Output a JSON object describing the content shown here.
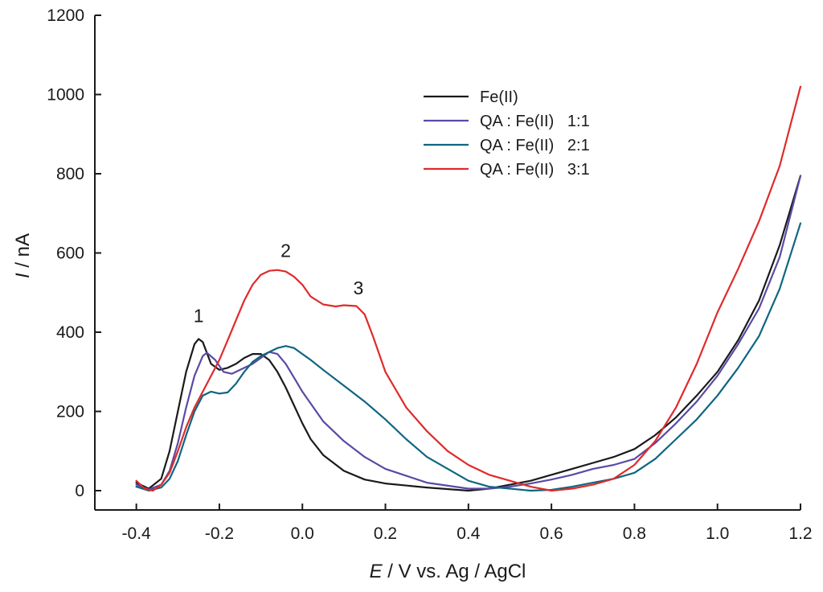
{
  "chart_data": {
    "type": "line",
    "title": "",
    "xlabel_var": "E",
    "xlabel_rest": " / V vs. Ag / AgCl",
    "ylabel_var": "I",
    "ylabel_rest": " / nA",
    "xlim": [
      -0.5,
      1.2
    ],
    "ylim": [
      -50,
      1200
    ],
    "xticks": [
      -0.4,
      -0.2,
      0.0,
      0.2,
      0.4,
      0.6,
      0.8,
      1.0,
      1.2
    ],
    "xtick_labels": [
      "-0.4",
      "-0.2",
      "0.0",
      "0.2",
      "0.4",
      "0.6",
      "0.8",
      "1.0",
      "1.2"
    ],
    "yticks": [
      0,
      200,
      400,
      600,
      800,
      1000,
      1200
    ],
    "ytick_labels": [
      "0",
      "200",
      "400",
      "600",
      "800",
      "1000",
      "1200"
    ],
    "grid": false,
    "legend_position": "top-right",
    "series": [
      {
        "name": "Fe(II)",
        "color": "#1a1a1a",
        "x": [
          -0.4,
          -0.37,
          -0.34,
          -0.32,
          -0.3,
          -0.28,
          -0.26,
          -0.25,
          -0.24,
          -0.22,
          -0.2,
          -0.18,
          -0.16,
          -0.14,
          -0.12,
          -0.1,
          -0.08,
          -0.06,
          -0.04,
          -0.02,
          0.0,
          0.02,
          0.05,
          0.1,
          0.15,
          0.2,
          0.3,
          0.4,
          0.45,
          0.5,
          0.55,
          0.6,
          0.65,
          0.7,
          0.75,
          0.8,
          0.85,
          0.9,
          0.95,
          1.0,
          1.05,
          1.1,
          1.15,
          1.2
        ],
        "y": [
          20,
          5,
          30,
          100,
          200,
          300,
          370,
          383,
          375,
          320,
          305,
          310,
          320,
          335,
          345,
          345,
          330,
          300,
          260,
          215,
          170,
          130,
          90,
          50,
          28,
          18,
          8,
          0,
          5,
          15,
          25,
          40,
          55,
          70,
          85,
          105,
          140,
          185,
          240,
          300,
          380,
          480,
          620,
          795
        ]
      },
      {
        "name": "QA : Fe(II)   1:1",
        "color": "#5a4aa5",
        "x": [
          -0.4,
          -0.37,
          -0.34,
          -0.32,
          -0.3,
          -0.28,
          -0.26,
          -0.24,
          -0.23,
          -0.21,
          -0.19,
          -0.17,
          -0.15,
          -0.12,
          -0.1,
          -0.08,
          -0.06,
          -0.04,
          -0.02,
          0.0,
          0.05,
          0.1,
          0.15,
          0.2,
          0.3,
          0.4,
          0.45,
          0.5,
          0.55,
          0.6,
          0.65,
          0.7,
          0.75,
          0.8,
          0.85,
          0.9,
          0.95,
          1.0,
          1.05,
          1.1,
          1.15,
          1.2
        ],
        "y": [
          15,
          3,
          15,
          50,
          120,
          210,
          290,
          340,
          348,
          330,
          300,
          295,
          305,
          320,
          335,
          350,
          345,
          320,
          285,
          250,
          175,
          125,
          85,
          55,
          20,
          5,
          5,
          10,
          18,
          28,
          40,
          55,
          65,
          80,
          120,
          170,
          225,
          290,
          370,
          460,
          590,
          795
        ]
      },
      {
        "name": "QA : Fe(II)   2:1",
        "color": "#0e6680",
        "x": [
          -0.4,
          -0.37,
          -0.34,
          -0.32,
          -0.3,
          -0.28,
          -0.26,
          -0.24,
          -0.22,
          -0.2,
          -0.18,
          -0.16,
          -0.14,
          -0.12,
          -0.1,
          -0.08,
          -0.06,
          -0.04,
          -0.02,
          0.0,
          0.02,
          0.05,
          0.1,
          0.15,
          0.2,
          0.25,
          0.3,
          0.4,
          0.45,
          0.5,
          0.55,
          0.6,
          0.65,
          0.7,
          0.75,
          0.8,
          0.85,
          0.9,
          0.95,
          1.0,
          1.05,
          1.1,
          1.15,
          1.2
        ],
        "y": [
          10,
          0,
          8,
          30,
          75,
          140,
          200,
          240,
          250,
          245,
          248,
          270,
          300,
          325,
          340,
          350,
          360,
          365,
          360,
          345,
          330,
          305,
          265,
          225,
          180,
          130,
          85,
          25,
          10,
          5,
          0,
          2,
          10,
          20,
          30,
          45,
          80,
          130,
          180,
          240,
          310,
          390,
          510,
          675
        ]
      },
      {
        "name": "QA : Fe(II)   3:1",
        "color": "#e02a2a",
        "x": [
          -0.4,
          -0.38,
          -0.36,
          -0.34,
          -0.32,
          -0.3,
          -0.28,
          -0.26,
          -0.24,
          -0.22,
          -0.2,
          -0.18,
          -0.16,
          -0.14,
          -0.12,
          -0.1,
          -0.08,
          -0.06,
          -0.04,
          -0.02,
          0.0,
          0.02,
          0.05,
          0.08,
          0.1,
          0.13,
          0.15,
          0.17,
          0.2,
          0.25,
          0.3,
          0.35,
          0.4,
          0.45,
          0.5,
          0.55,
          0.6,
          0.65,
          0.7,
          0.75,
          0.8,
          0.85,
          0.9,
          0.95,
          1.0,
          1.05,
          1.1,
          1.15,
          1.2
        ],
        "y": [
          25,
          5,
          0,
          15,
          45,
          100,
          160,
          210,
          250,
          290,
          330,
          380,
          430,
          480,
          520,
          545,
          555,
          557,
          553,
          540,
          520,
          490,
          470,
          465,
          468,
          466,
          445,
          390,
          300,
          210,
          150,
          100,
          65,
          40,
          25,
          10,
          0,
          5,
          15,
          30,
          65,
          125,
          210,
          320,
          450,
          560,
          680,
          820,
          1020
        ]
      }
    ],
    "annotations": [
      {
        "text": "1",
        "x": -0.25,
        "y": 425
      },
      {
        "text": "2",
        "x": -0.04,
        "y": 590
      },
      {
        "text": "3",
        "x": 0.135,
        "y": 495
      }
    ]
  }
}
